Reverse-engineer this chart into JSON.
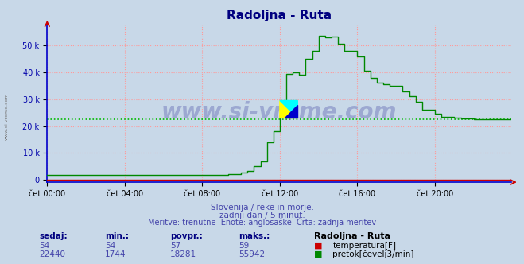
{
  "title": "Radoljna - Ruta",
  "title_color": "#000080",
  "bg_color": "#c8d8e8",
  "plot_bg_color": "#c8d8e8",
  "grid_color": "#ff9999",
  "spine_color": "#0000cc",
  "xlabel_ticks": [
    "čet 00:00",
    "čet 04:00",
    "čet 08:00",
    "čet 12:00",
    "čet 16:00",
    "čet 20:00"
  ],
  "yticks": [
    0,
    10000,
    20000,
    30000,
    40000,
    50000
  ],
  "ytick_labels": [
    "0",
    "10 k",
    "20 k",
    "30 k",
    "40 k",
    "50 k"
  ],
  "ylim": [
    -800,
    58000
  ],
  "xlim": [
    0,
    287
  ],
  "temp_color": "#cc0000",
  "flow_color": "#008800",
  "avg_line_color": "#00bb00",
  "watermark": "www.si-vreme.com",
  "watermark_color": "#000080",
  "subtitle1": "Slovenija / reke in morje.",
  "subtitle2": "zadnji dan / 5 minut.",
  "subtitle3": "Meritve: trenutne  Enote: anglosaške  Črta: zadnja meritev",
  "subtitle_color": "#4444aa",
  "footer_label_color": "#000080",
  "legend_title": "Radoljna - Ruta",
  "temp_label": "temperatura[F]",
  "flow_label": "pretok[čevelj3/min]",
  "temp_now": 54,
  "temp_min": 54,
  "temp_avg": 57,
  "temp_max": 59,
  "flow_now": 22440,
  "flow_min": 1744,
  "flow_avg": 18281,
  "flow_max": 55942,
  "avg_flow_line": 22440,
  "left_watermark": "www.si-vreme.com"
}
